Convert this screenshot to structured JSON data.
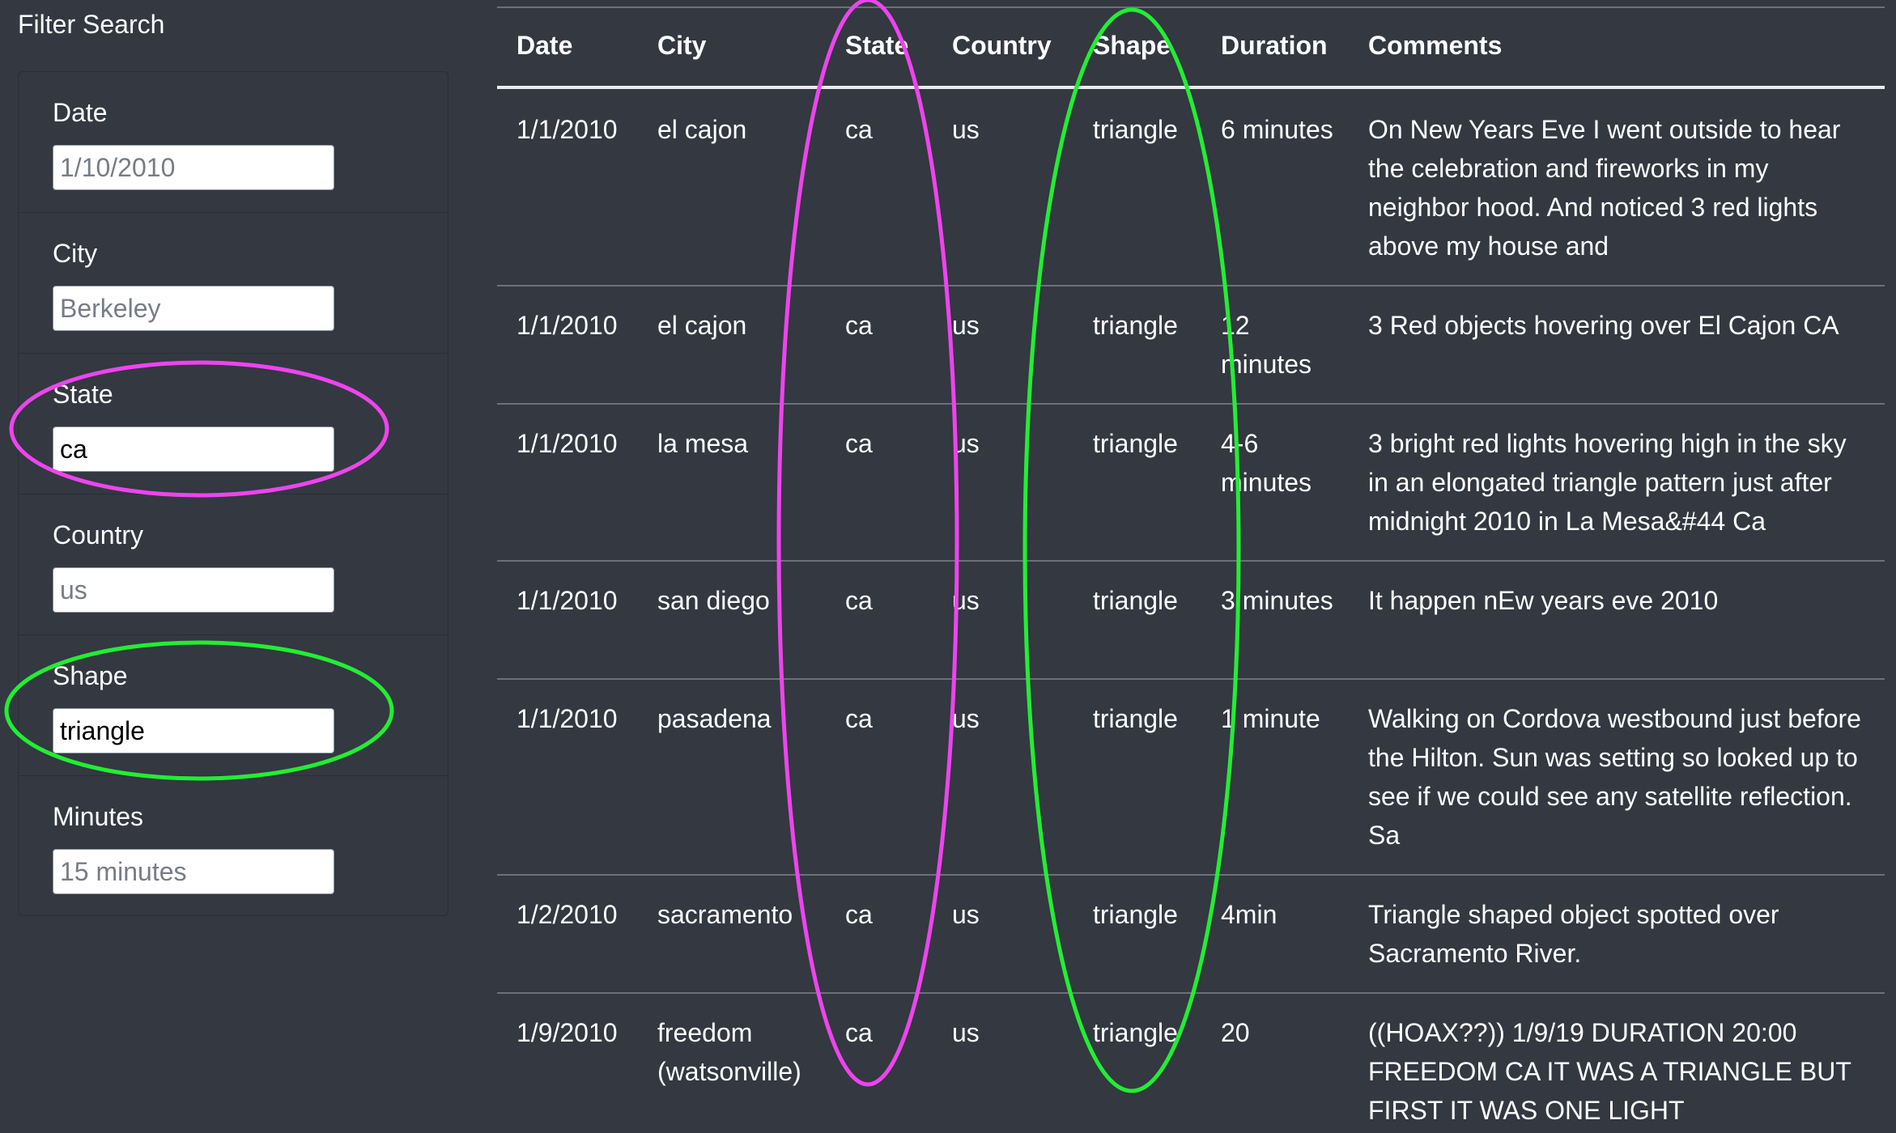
{
  "filter": {
    "title": "Filter Search",
    "fields": [
      {
        "label": "Date",
        "value": "",
        "placeholder": "1/10/2010"
      },
      {
        "label": "City",
        "value": "",
        "placeholder": "Berkeley"
      },
      {
        "label": "State",
        "value": "ca",
        "placeholder": ""
      },
      {
        "label": "Country",
        "value": "",
        "placeholder": "us"
      },
      {
        "label": "Shape",
        "value": "triangle",
        "placeholder": ""
      },
      {
        "label": "Minutes",
        "value": "",
        "placeholder": "15 minutes"
      }
    ]
  },
  "table": {
    "headers": [
      "Date",
      "City",
      "State",
      "Country",
      "Shape",
      "Duration",
      "Comments"
    ],
    "rows": [
      [
        "1/1/2010",
        "el cajon",
        "ca",
        "us",
        "triangle",
        "6 minutes",
        "On New Years Eve I went outside to hear the celebration and fireworks in my neighbor hood. And noticed 3 red lights above my house and"
      ],
      [
        "1/1/2010",
        "el cajon",
        "ca",
        "us",
        "triangle",
        "12 minutes",
        "3 Red objects hovering over El Cajon CA"
      ],
      [
        "1/1/2010",
        "la mesa",
        "ca",
        "us",
        "triangle",
        "4-6 minutes",
        "3 bright red lights hovering high in the sky in an elongated triangle pattern just after midnight 2010 in La Mesa&#44 Ca"
      ],
      [
        "1/1/2010",
        "san diego",
        "ca",
        "us",
        "triangle",
        "3 minutes",
        "It happen nEw years eve 2010"
      ],
      [
        "1/1/2010",
        "pasadena",
        "ca",
        "us",
        "triangle",
        "1 minute",
        "Walking on Cordova westbound just before the Hilton. Sun was setting so looked up to see if we could see any satellite reflection. Sa"
      ],
      [
        "1/2/2010",
        "sacramento",
        "ca",
        "us",
        "triangle",
        "4min",
        "Triangle shaped object spotted over Sacramento River."
      ],
      [
        "1/9/2010",
        "freedom (watsonville)",
        "ca",
        "us",
        "triangle",
        "20",
        "((HOAX??)) 1/9/19 DURATION 20:00 FREEDOM CA IT WAS A TRIANGLE BUT FIRST IT WAS ONE LIGHT"
      ]
    ]
  },
  "annotations": {
    "state_color": "#ee44ee",
    "shape_color": "#22ee33"
  }
}
